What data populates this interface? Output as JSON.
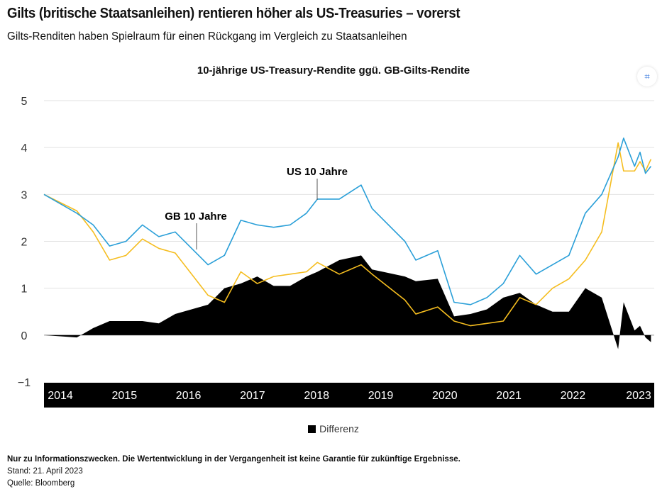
{
  "title": "Gilts (britische Staatsanleihen) rentieren höher als US-Treasuries – vorerst",
  "subtitle": "Gilts-Renditen haben Spielraum für einen Rückgang im Vergleich zu Staatsanleihen",
  "icons": {
    "zoom": "focus-zoom-icon"
  },
  "chart_data": {
    "type": "line",
    "title": "10-jährige US-Treasury-Rendite ggü. GB-Gilts-Rendite",
    "ylim": [
      -1,
      5
    ],
    "yticks": [
      "5",
      "4",
      "3",
      "2",
      "1",
      "0",
      "−1"
    ],
    "xticks": [
      "2014",
      "2015",
      "2016",
      "2017",
      "2018",
      "2019",
      "2020",
      "2021",
      "2022",
      "2023"
    ],
    "x": [
      "2014-01",
      "2014-07",
      "2014-10",
      "2015-01",
      "2015-04",
      "2015-07",
      "2015-10",
      "2016-01",
      "2016-07",
      "2016-10",
      "2017-01",
      "2017-04",
      "2017-07",
      "2017-10",
      "2018-01",
      "2018-03",
      "2018-07",
      "2018-11",
      "2019-01",
      "2019-07",
      "2019-09",
      "2020-01",
      "2020-04",
      "2020-07",
      "2020-10",
      "2021-01",
      "2021-04",
      "2021-07",
      "2021-10",
      "2022-01",
      "2022-04",
      "2022-07",
      "2022-10",
      "2022-11",
      "2023-01",
      "2023-02",
      "2023-03",
      "2023-04"
    ],
    "series": [
      {
        "name": "US 10 Jahre",
        "color": "#2a9fd8",
        "values": [
          3.0,
          2.6,
          2.35,
          1.9,
          2.0,
          2.35,
          2.1,
          2.2,
          1.5,
          1.7,
          2.45,
          2.35,
          2.3,
          2.35,
          2.6,
          2.9,
          2.9,
          3.2,
          2.7,
          2.0,
          1.6,
          1.8,
          0.7,
          0.65,
          0.8,
          1.1,
          1.7,
          1.3,
          1.5,
          1.7,
          2.6,
          3.0,
          3.8,
          4.2,
          3.6,
          3.9,
          3.45,
          3.6
        ]
      },
      {
        "name": "GB 10 Jahre",
        "color": "#f5bd1f",
        "values": [
          3.0,
          2.65,
          2.2,
          1.6,
          1.7,
          2.05,
          1.85,
          1.75,
          0.85,
          0.7,
          1.35,
          1.1,
          1.25,
          1.3,
          1.35,
          1.55,
          1.3,
          1.5,
          1.3,
          0.75,
          0.45,
          0.6,
          0.3,
          0.2,
          0.25,
          0.3,
          0.8,
          0.65,
          1.0,
          1.2,
          1.6,
          2.2,
          4.1,
          3.5,
          3.5,
          3.7,
          3.5,
          3.75
        ]
      },
      {
        "name": "Differenz",
        "type": "area",
        "color": "#000000",
        "values": [
          0,
          -0.05,
          0.15,
          0.3,
          0.3,
          0.3,
          0.25,
          0.45,
          0.65,
          1.0,
          1.1,
          1.25,
          1.05,
          1.05,
          1.25,
          1.35,
          1.6,
          1.7,
          1.4,
          1.25,
          1.15,
          1.2,
          0.4,
          0.45,
          0.55,
          0.8,
          0.9,
          0.65,
          0.5,
          0.5,
          1.0,
          0.8,
          -0.3,
          0.7,
          0.1,
          0.2,
          -0.05,
          -0.15
        ]
      }
    ],
    "grid": true,
    "legend": "bottom"
  },
  "footer": {
    "disclaimer": "Nur zu Informationszwecken. Die Wertentwicklung in der Vergangenheit ist keine Garantie für zukünftige Ergebnisse.",
    "date": "Stand: 21. April 2023",
    "source": "Quelle: Bloomberg"
  }
}
